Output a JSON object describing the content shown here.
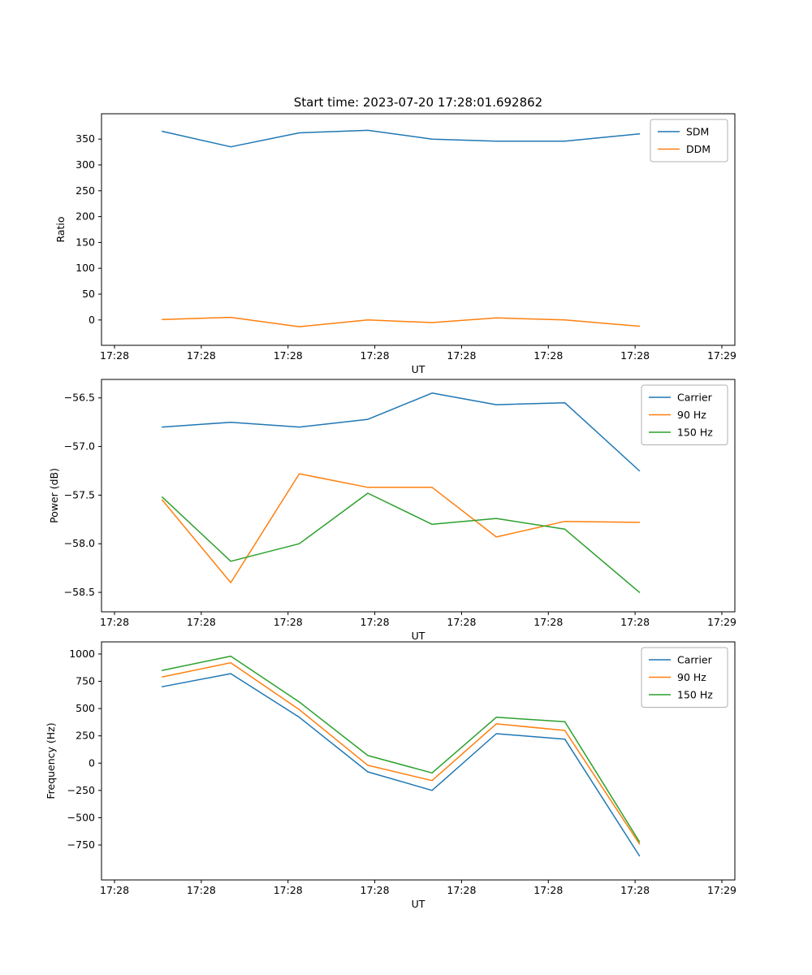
{
  "figure": {
    "title": "Start time: 2023-07-20 17:28:01.692862",
    "background": "#ffffff"
  },
  "colors": {
    "blue": "#1f77b4",
    "orange": "#ff7f0e",
    "green": "#2ca02c",
    "axes": "#000000",
    "legend_border": "#b0b0b0"
  },
  "chart_data": [
    {
      "type": "line",
      "title": "Start time: 2023-07-20 17:28:01.692862",
      "xlabel": "UT",
      "ylabel": "Ratio",
      "x": [
        5.5,
        13.4,
        21.3,
        29.2,
        36.6,
        44.0,
        51.9,
        60.5
      ],
      "xlim": [
        -1.5,
        71.5
      ],
      "ylim": [
        -49,
        399
      ],
      "x_ticks": {
        "values": [
          0,
          10,
          20,
          30,
          40,
          50,
          60,
          70
        ],
        "labels": [
          "17:28",
          "17:28",
          "17:28",
          "17:28",
          "17:28",
          "17:28",
          "17:28",
          "17:29"
        ]
      },
      "y_ticks": {
        "values": [
          0,
          50,
          100,
          150,
          200,
          250,
          300,
          350
        ],
        "labels": [
          "0",
          "50",
          "100",
          "150",
          "200",
          "250",
          "300",
          "350"
        ]
      },
      "series": [
        {
          "name": "SDM",
          "color": "#1f77b4",
          "values": [
            365,
            335,
            362,
            367,
            350,
            346,
            346,
            360
          ]
        },
        {
          "name": "DDM",
          "color": "#ff7f0e",
          "values": [
            1,
            5,
            -13,
            0,
            -5,
            4,
            0,
            -12
          ]
        }
      ],
      "legend": {
        "position": "upper right",
        "entries": [
          "SDM",
          "DDM"
        ]
      }
    },
    {
      "type": "line",
      "title": "",
      "xlabel": "UT",
      "ylabel": "Power (dB)",
      "x": [
        5.5,
        13.4,
        21.3,
        29.2,
        36.6,
        44.0,
        51.9,
        60.5
      ],
      "xlim": [
        -1.5,
        71.5
      ],
      "ylim": [
        -58.7,
        -56.31
      ],
      "x_ticks": {
        "values": [
          0,
          10,
          20,
          30,
          40,
          50,
          60,
          70
        ],
        "labels": [
          "17:28",
          "17:28",
          "17:28",
          "17:28",
          "17:28",
          "17:28",
          "17:28",
          "17:29"
        ]
      },
      "y_ticks": {
        "values": [
          -58.5,
          -58.0,
          -57.5,
          -57.0,
          -56.5
        ],
        "labels": [
          "−58.5",
          "−58.0",
          "−57.5",
          "−57.0",
          "−56.5"
        ]
      },
      "series": [
        {
          "name": "Carrier",
          "color": "#1f77b4",
          "values": [
            -56.8,
            -56.75,
            -56.8,
            -56.72,
            -56.45,
            -56.57,
            -56.55,
            -57.25
          ]
        },
        {
          "name": "90 Hz",
          "color": "#ff7f0e",
          "values": [
            -57.55,
            -58.4,
            -57.28,
            -57.42,
            -57.42,
            -57.93,
            -57.77,
            -57.78
          ]
        },
        {
          "name": "150 Hz",
          "color": "#2ca02c",
          "values": [
            -57.52,
            -58.18,
            -58.0,
            -57.48,
            -57.8,
            -57.74,
            -57.85,
            -58.5
          ]
        }
      ],
      "legend": {
        "position": "upper right",
        "entries": [
          "Carrier",
          "90 Hz",
          "150 Hz"
        ]
      }
    },
    {
      "type": "line",
      "title": "",
      "xlabel": "UT",
      "ylabel": "Frequency (Hz)",
      "x": [
        5.5,
        13.4,
        21.3,
        29.2,
        36.6,
        44.0,
        51.9,
        60.5
      ],
      "xlim": [
        -1.5,
        71.5
      ],
      "ylim": [
        -1070,
        1111
      ],
      "x_ticks": {
        "values": [
          0,
          10,
          20,
          30,
          40,
          50,
          60,
          70
        ],
        "labels": [
          "17:28",
          "17:28",
          "17:28",
          "17:28",
          "17:28",
          "17:28",
          "17:28",
          "17:29"
        ]
      },
      "y_ticks": {
        "values": [
          -750,
          -500,
          -250,
          0,
          250,
          500,
          750,
          1000
        ],
        "labels": [
          "−750",
          "−500",
          "−250",
          "0",
          "250",
          "500",
          "750",
          "1000"
        ]
      },
      "series": [
        {
          "name": "Carrier",
          "color": "#1f77b4",
          "values": [
            700,
            820,
            420,
            -80,
            -250,
            270,
            220,
            -850
          ]
        },
        {
          "name": "90 Hz",
          "color": "#ff7f0e",
          "values": [
            790,
            920,
            490,
            -20,
            -160,
            360,
            300,
            -740
          ]
        },
        {
          "name": "150 Hz",
          "color": "#2ca02c",
          "values": [
            850,
            980,
            560,
            70,
            -90,
            420,
            380,
            -720
          ]
        }
      ],
      "legend": {
        "position": "upper right",
        "entries": [
          "Carrier",
          "90 Hz",
          "150 Hz"
        ]
      }
    }
  ]
}
